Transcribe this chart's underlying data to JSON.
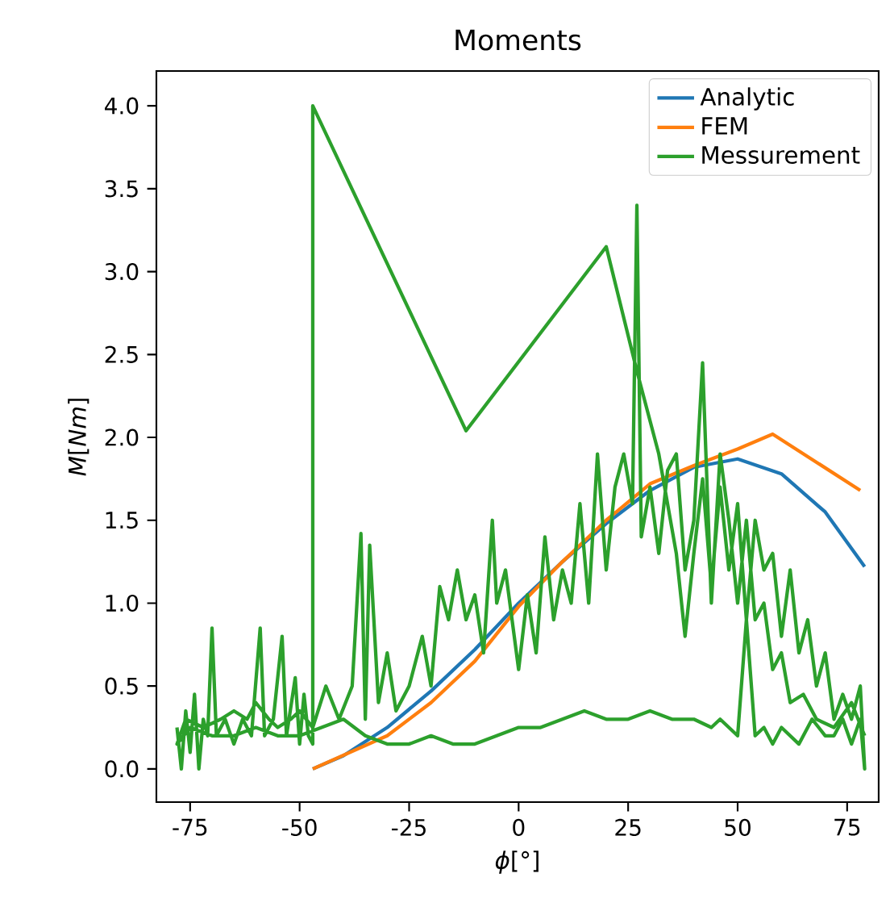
{
  "chart_data": {
    "type": "line",
    "title": "Moments",
    "xlabel": "*ϕ*[°]",
    "ylabel": "*M*[*Nm*]",
    "xlim": [
      -82.7,
      82.2
    ],
    "ylim": [
      -0.2,
      4.21
    ],
    "xticks": [
      -75,
      -50,
      -25,
      0,
      25,
      50,
      75
    ],
    "yticks": [
      {
        "value": 0,
        "label": "0.0"
      },
      {
        "value": 0.5,
        "label": "0.5"
      },
      {
        "value": 1,
        "label": "1.0"
      },
      {
        "value": 1.5,
        "label": "1.5"
      },
      {
        "value": 2,
        "label": "2.0"
      },
      {
        "value": 2.5,
        "label": "2.5"
      },
      {
        "value": 3,
        "label": "3.0"
      },
      {
        "value": 3.5,
        "label": "3.5"
      },
      {
        "value": 4,
        "label": "4.0"
      }
    ],
    "grid": false,
    "legend": "top right",
    "line_style": "solid",
    "marker": "none",
    "series": [
      {
        "name": "Analytic",
        "color": "#1f77b4",
        "x": [
          -47,
          -40,
          -30,
          -20,
          -10,
          0,
          10,
          20,
          30,
          40,
          50,
          60,
          70,
          79
        ],
        "values": [
          0,
          0.08,
          0.25,
          0.47,
          0.72,
          1.0,
          1.25,
          1.48,
          1.68,
          1.82,
          1.87,
          1.78,
          1.55,
          1.22
        ]
      },
      {
        "name": "FEM",
        "color": "#ff7f0e",
        "x": [
          -47,
          -30,
          -20,
          -10,
          0,
          10,
          20,
          30,
          40,
          50,
          58,
          78
        ],
        "values": [
          0,
          0.2,
          0.4,
          0.65,
          0.98,
          1.25,
          1.5,
          1.72,
          1.83,
          1.93,
          2.02,
          1.68
        ]
      },
      {
        "name": "Messurement",
        "color": "#2ca02c",
        "x": [
          -78,
          -77,
          -76,
          -75,
          -74,
          -73,
          -72,
          -71,
          -70,
          -69,
          -67,
          -65,
          -63,
          -61,
          -59,
          -58,
          -56,
          -54,
          -53,
          -51,
          -50,
          -49,
          -48,
          -47,
          -47,
          -12,
          20,
          27,
          32,
          36,
          38,
          40,
          42,
          44,
          46,
          48,
          50,
          52,
          54,
          56,
          58,
          60,
          62,
          64,
          66,
          68,
          70,
          72,
          74,
          76,
          78,
          79,
          78,
          76,
          74,
          72,
          70,
          67,
          64,
          60,
          58,
          56,
          54,
          52,
          50,
          48,
          46,
          44,
          40,
          35,
          30,
          25,
          20,
          15,
          10,
          5,
          0,
          -5,
          -10,
          -15,
          -20,
          -25,
          -30,
          -35,
          -40,
          -45,
          -50,
          -55,
          -60,
          -65,
          -70,
          -75,
          -78,
          -76,
          -72,
          -68,
          -65,
          -62,
          -60,
          -57,
          -55,
          -52,
          -50,
          -47,
          -44,
          -41,
          -38,
          -36,
          -35,
          -34,
          -32,
          -30,
          -28,
          -25,
          -22,
          -20,
          -18,
          -16,
          -14,
          -12,
          -10,
          -8,
          -6,
          -5,
          -3,
          0,
          2,
          4,
          6,
          8,
          10,
          12,
          14,
          16,
          18,
          20,
          22,
          24,
          26,
          27,
          28,
          30,
          32,
          34,
          36,
          38,
          40,
          42,
          44,
          46,
          48,
          50,
          52,
          54,
          56,
          58,
          60,
          62,
          65,
          68,
          72,
          76,
          79
        ],
        "values": [
          0.25,
          0.0,
          0.35,
          0.1,
          0.45,
          0.0,
          0.3,
          0.2,
          0.85,
          0.2,
          0.3,
          0.15,
          0.3,
          0.2,
          0.85,
          0.2,
          0.3,
          0.8,
          0.2,
          0.55,
          0.15,
          0.45,
          0.2,
          0.15,
          4.0,
          2.04,
          3.15,
          2.4,
          1.9,
          1.3,
          0.8,
          1.3,
          1.75,
          1.1,
          1.7,
          1.2,
          1.6,
          0.9,
          1.5,
          1.2,
          1.3,
          0.8,
          1.2,
          0.7,
          0.9,
          0.5,
          0.7,
          0.3,
          0.45,
          0.3,
          0.5,
          0.0,
          0.3,
          0.15,
          0.3,
          0.2,
          0.2,
          0.3,
          0.15,
          0.25,
          0.15,
          0.25,
          0.2,
          0.9,
          0.2,
          0.25,
          0.3,
          0.25,
          0.3,
          0.3,
          0.35,
          0.3,
          0.3,
          0.35,
          0.3,
          0.25,
          0.25,
          0.2,
          0.15,
          0.15,
          0.2,
          0.15,
          0.15,
          0.2,
          0.3,
          0.25,
          0.2,
          0.2,
          0.25,
          0.2,
          0.2,
          0.25,
          0.15,
          0.3,
          0.25,
          0.3,
          0.35,
          0.3,
          0.4,
          0.3,
          0.25,
          0.3,
          0.35,
          0.25,
          0.5,
          0.3,
          0.5,
          1.42,
          0.3,
          1.35,
          0.4,
          0.7,
          0.35,
          0.5,
          0.8,
          0.5,
          1.1,
          0.9,
          1.2,
          0.9,
          1.05,
          0.7,
          1.5,
          1.0,
          1.2,
          0.6,
          1.05,
          0.7,
          1.4,
          0.9,
          1.2,
          1.0,
          1.6,
          1.0,
          1.9,
          1.2,
          1.7,
          1.9,
          1.6,
          3.4,
          1.4,
          1.7,
          1.3,
          1.8,
          1.9,
          1.2,
          1.5,
          2.45,
          1.0,
          1.9,
          1.5,
          1.0,
          1.5,
          0.9,
          1.0,
          0.6,
          0.7,
          0.4,
          0.45,
          0.3,
          0.25,
          0.4,
          0.2
        ]
      }
    ]
  }
}
